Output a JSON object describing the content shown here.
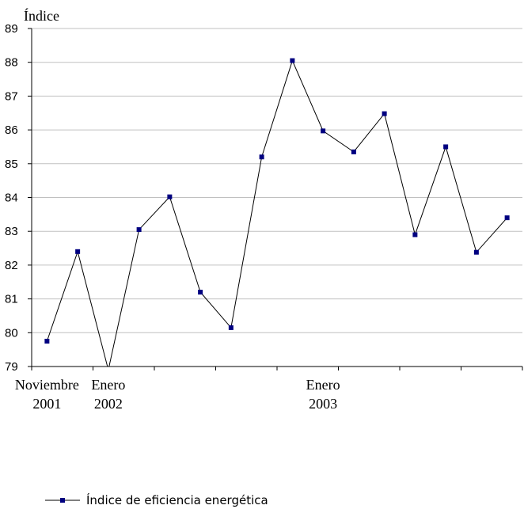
{
  "chart_data": {
    "type": "line",
    "ylabel": "Índice",
    "ylim": [
      79,
      89
    ],
    "yticks": [
      79,
      80,
      81,
      82,
      83,
      84,
      85,
      86,
      87,
      88,
      89
    ],
    "grid": true,
    "x_tick_labels": [
      {
        "index": 0,
        "line1": "Noviembre",
        "line2": "2001"
      },
      {
        "index": 2,
        "line1": "Enero",
        "line2": "2002"
      },
      {
        "index": 9,
        "line1": "Enero",
        "line2": "2003"
      }
    ],
    "series": [
      {
        "name": "Índice de eficiencia energética",
        "color": "#000080",
        "values": [
          79.75,
          82.4,
          78.9,
          83.05,
          84.02,
          81.2,
          80.15,
          85.2,
          88.05,
          85.97,
          85.35,
          86.48,
          82.9,
          85.5,
          82.38,
          83.4
        ]
      }
    ],
    "legend_position": "bottom-left"
  }
}
